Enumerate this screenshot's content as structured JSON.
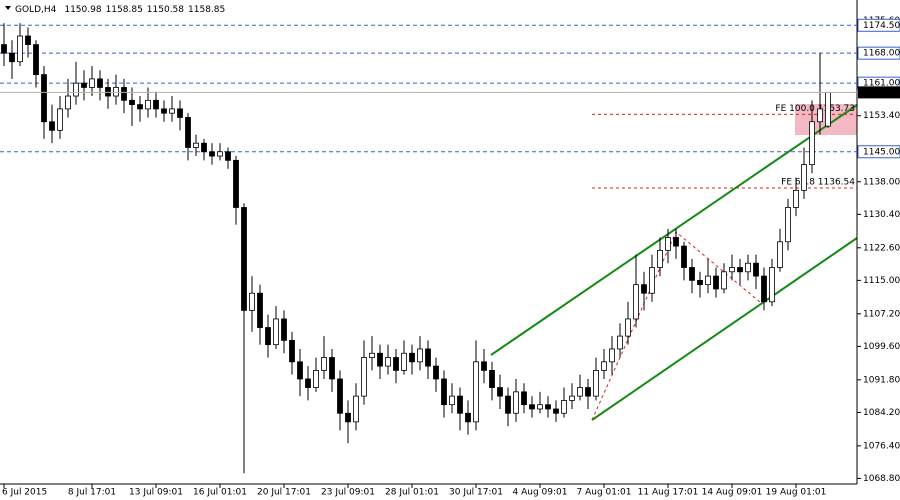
{
  "chart_data": {
    "type": "candlestick",
    "title": "GOLD,H4",
    "header_values": [
      1150.98,
      1158.85,
      1150.58,
      1158.85
    ],
    "categories": [
      "6 Jul 2015",
      null,
      null,
      null,
      null,
      null,
      null,
      null,
      null,
      null,
      null,
      "8 Jul 17:01",
      null,
      null,
      null,
      null,
      null,
      null,
      null,
      "13 Jul 09:01",
      null,
      null,
      null,
      null,
      null,
      null,
      null,
      "16 Jul 01:01",
      null,
      null,
      null,
      null,
      null,
      null,
      null,
      "20 Jul 17:01",
      null,
      null,
      null,
      null,
      null,
      null,
      null,
      "23 Jul 09:01",
      null,
      null,
      null,
      null,
      null,
      null,
      null,
      "28 Jul 01:01",
      null,
      null,
      null,
      null,
      null,
      null,
      null,
      "30 Jul 17:01",
      null,
      null,
      null,
      null,
      null,
      null,
      null,
      "4 Aug 09:01",
      null,
      null,
      null,
      null,
      null,
      null,
      null,
      "7 Aug 01:01",
      null,
      null,
      null,
      null,
      null,
      null,
      null,
      "11 Aug 17:01",
      null,
      null,
      null,
      null,
      null,
      null,
      null,
      "14 Aug 09:01",
      null,
      null,
      null,
      null,
      null,
      null,
      null,
      "19 Aug 01:01",
      null,
      null,
      null,
      null
    ],
    "candles": [
      [
        1170,
        1175,
        1165,
        1168
      ],
      [
        1168,
        1171,
        1162,
        1166
      ],
      [
        1166,
        1175,
        1165,
        1172
      ],
      [
        1172,
        1174,
        1167,
        1170
      ],
      [
        1170,
        1171,
        1160,
        1163
      ],
      [
        1163,
        1165,
        1148,
        1152
      ],
      [
        1152,
        1156,
        1147,
        1150
      ],
      [
        1150,
        1158,
        1148,
        1155
      ],
      [
        1155,
        1162,
        1153,
        1158
      ],
      [
        1158,
        1166,
        1156,
        1161
      ],
      [
        1161,
        1164,
        1157,
        1160
      ],
      [
        1160,
        1165,
        1158,
        1162
      ],
      [
        1162,
        1164,
        1157,
        1160
      ],
      [
        1160,
        1162,
        1155,
        1158
      ],
      [
        1158,
        1163,
        1156,
        1160
      ],
      [
        1160,
        1162,
        1154,
        1157
      ],
      [
        1157,
        1160,
        1151,
        1156
      ],
      [
        1156,
        1158,
        1152,
        1155
      ],
      [
        1155,
        1160,
        1153,
        1157
      ],
      [
        1157,
        1159,
        1153,
        1155
      ],
      [
        1155,
        1157,
        1152,
        1154
      ],
      [
        1154,
        1158,
        1152,
        1155
      ],
      [
        1155,
        1157,
        1150,
        1153
      ],
      [
        1153,
        1154,
        1143,
        1146
      ],
      [
        1146,
        1149,
        1144,
        1147
      ],
      [
        1147,
        1148,
        1143,
        1145
      ],
      [
        1145,
        1147,
        1142,
        1144
      ],
      [
        1144,
        1147,
        1143,
        1145
      ],
      [
        1145,
        1146,
        1141,
        1143
      ],
      [
        1143,
        1144,
        1128,
        1132
      ],
      [
        1132,
        1133,
        1070,
        1108
      ],
      [
        1108,
        1116,
        1103,
        1112
      ],
      [
        1112,
        1114,
        1100,
        1104
      ],
      [
        1104,
        1107,
        1097,
        1100
      ],
      [
        1100,
        1109,
        1099,
        1106
      ],
      [
        1106,
        1108,
        1098,
        1101
      ],
      [
        1101,
        1103,
        1093,
        1096
      ],
      [
        1096,
        1099,
        1088,
        1092
      ],
      [
        1092,
        1095,
        1087,
        1090
      ],
      [
        1090,
        1097,
        1089,
        1094
      ],
      [
        1094,
        1102,
        1092,
        1097
      ],
      [
        1097,
        1099,
        1089,
        1092
      ],
      [
        1092,
        1094,
        1080,
        1084
      ],
      [
        1084,
        1087,
        1077,
        1082
      ],
      [
        1082,
        1091,
        1080,
        1088
      ],
      [
        1088,
        1101,
        1086,
        1097
      ],
      [
        1097,
        1102,
        1094,
        1098
      ],
      [
        1098,
        1100,
        1092,
        1095
      ],
      [
        1095,
        1100,
        1093,
        1097
      ],
      [
        1097,
        1099,
        1091,
        1094
      ],
      [
        1094,
        1101,
        1093,
        1098
      ],
      [
        1098,
        1100,
        1093,
        1096
      ],
      [
        1096,
        1102,
        1094,
        1099
      ],
      [
        1099,
        1101,
        1092,
        1095
      ],
      [
        1095,
        1097,
        1089,
        1092
      ],
      [
        1092,
        1094,
        1083,
        1086
      ],
      [
        1086,
        1091,
        1084,
        1088
      ],
      [
        1088,
        1090,
        1080,
        1084
      ],
      [
        1084,
        1087,
        1079,
        1082
      ],
      [
        1082,
        1101,
        1080,
        1096
      ],
      [
        1096,
        1099,
        1091,
        1094
      ],
      [
        1094,
        1096,
        1087,
        1090
      ],
      [
        1090,
        1093,
        1085,
        1088
      ],
      [
        1088,
        1090,
        1081,
        1084
      ],
      [
        1084,
        1092,
        1082,
        1089
      ],
      [
        1089,
        1091,
        1084,
        1086
      ],
      [
        1086,
        1088,
        1083,
        1085
      ],
      [
        1085,
        1089,
        1084,
        1086
      ],
      [
        1086,
        1088,
        1083,
        1085
      ],
      [
        1085,
        1087,
        1082,
        1084
      ],
      [
        1084,
        1090,
        1083,
        1087
      ],
      [
        1087,
        1091,
        1085,
        1088
      ],
      [
        1088,
        1093,
        1087,
        1090
      ],
      [
        1090,
        1092,
        1085,
        1088
      ],
      [
        1088,
        1097,
        1087,
        1094
      ],
      [
        1094,
        1099,
        1092,
        1096
      ],
      [
        1096,
        1102,
        1093,
        1099
      ],
      [
        1099,
        1105,
        1097,
        1102
      ],
      [
        1102,
        1110,
        1100,
        1106
      ],
      [
        1106,
        1121,
        1104,
        1114
      ],
      [
        1114,
        1117,
        1108,
        1112
      ],
      [
        1112,
        1121,
        1110,
        1118
      ],
      [
        1118,
        1125,
        1116,
        1122
      ],
      [
        1122,
        1127,
        1119,
        1125
      ],
      [
        1125,
        1127,
        1120,
        1123
      ],
      [
        1123,
        1124,
        1115,
        1118
      ],
      [
        1118,
        1120,
        1112,
        1115
      ],
      [
        1115,
        1117,
        1111,
        1114
      ],
      [
        1114,
        1120,
        1112,
        1116
      ],
      [
        1116,
        1118,
        1111,
        1113
      ],
      [
        1113,
        1119,
        1112,
        1117
      ],
      [
        1117,
        1121,
        1115,
        1118
      ],
      [
        1118,
        1120,
        1114,
        1117
      ],
      [
        1117,
        1121,
        1115,
        1119
      ],
      [
        1119,
        1121,
        1113,
        1116
      ],
      [
        1116,
        1118,
        1108,
        1110
      ],
      [
        1110,
        1120,
        1109,
        1118
      ],
      [
        1118,
        1127,
        1117,
        1124
      ],
      [
        1124,
        1134,
        1122,
        1132
      ],
      [
        1132,
        1139,
        1130,
        1136
      ],
      [
        1136,
        1146,
        1134,
        1142
      ],
      [
        1142,
        1157,
        1140,
        1152
      ],
      [
        1152,
        1168,
        1149,
        1155
      ],
      [
        1150.98,
        1158.85,
        1150.58,
        1158.85
      ]
    ],
    "up_color": "#ffffff",
    "down_color": "#000000",
    "ylim": [
      1067.5,
      1180.4
    ],
    "yticks": [
      {
        "value": 1175.6,
        "label": "1175.60"
      },
      {
        "value": 1153.4,
        "label": "1153.40"
      },
      {
        "value": 1138,
        "label": "1138.00"
      },
      {
        "value": 1130.4,
        "label": "1130.40"
      },
      {
        "value": 1122.6,
        "label": "1122.60"
      },
      {
        "value": 1115,
        "label": "1115.00"
      },
      {
        "value": 1107.2,
        "label": "1107.20"
      },
      {
        "value": 1099.6,
        "label": "1099.60"
      },
      {
        "value": 1091.8,
        "label": "1091.80"
      },
      {
        "value": 1084.2,
        "label": "1084.20"
      },
      {
        "value": 1076.4,
        "label": "1076.40"
      },
      {
        "value": 1068.8,
        "label": "1068.80"
      }
    ],
    "hlines": [
      {
        "value": 1174.5,
        "label": "1174.50"
      },
      {
        "value": 1168,
        "label": "1168.00"
      },
      {
        "value": 1161,
        "label": "1161.00"
      },
      {
        "value": 1145,
        "label": "1145.00"
      }
    ],
    "hline_color": "#3a5fcd",
    "current_price": {
      "value": 1158.85,
      "label": "1158.85"
    },
    "fib_levels": [
      {
        "value": 1153.73,
        "label": "FE 100.0 1153.73"
      },
      {
        "value": 1136.54,
        "label": "FE 61.8 1136.54"
      }
    ],
    "fib_color": "#e02020"
  }
}
